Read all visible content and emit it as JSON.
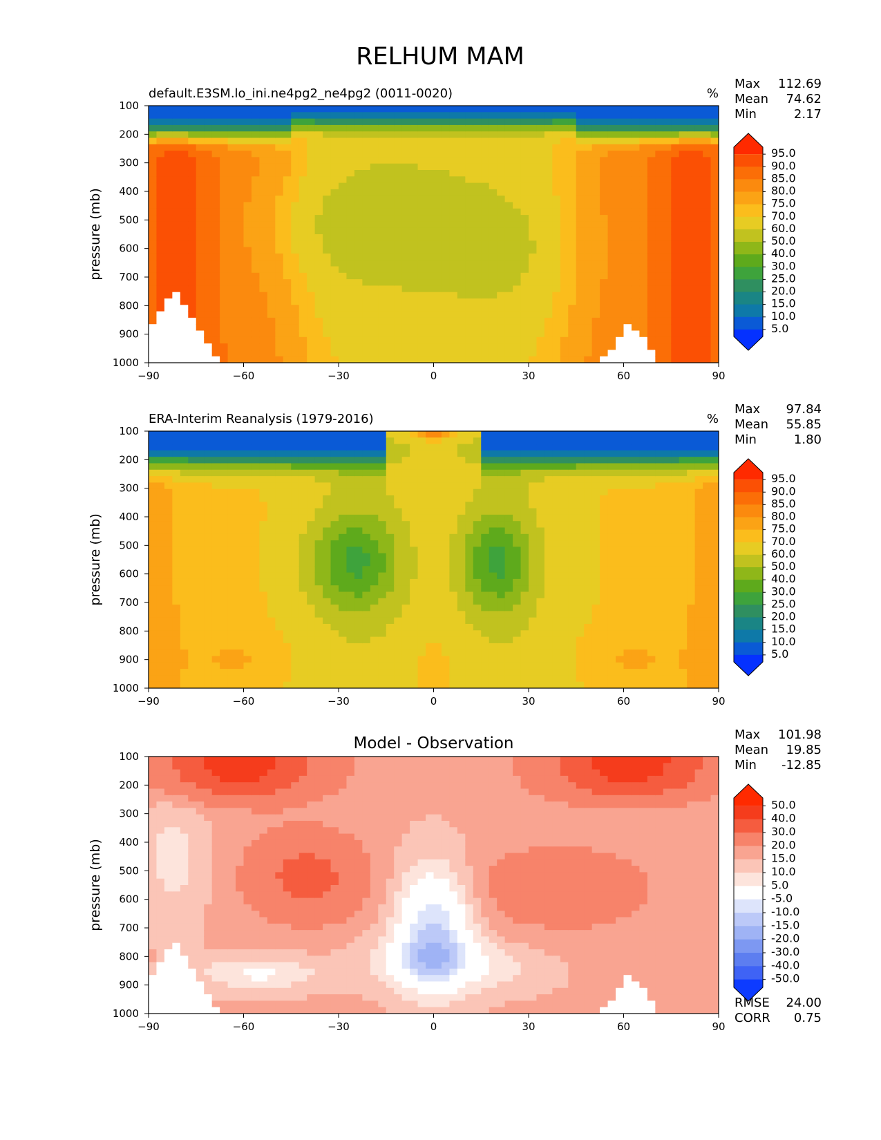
{
  "figure": {
    "title": "RELHUM MAM"
  },
  "ylabel": "pressure (mb)",
  "y_ticks": [
    "100",
    "200",
    "300",
    "400",
    "500",
    "600",
    "700",
    "800",
    "900",
    "1000"
  ],
  "x_ticks": [
    "−90",
    "−60",
    "−30",
    "0",
    "30",
    "60",
    "90"
  ],
  "chart_data": [
    {
      "type": "heatmap",
      "title": "default.E3SM.lo_ini.ne4pg2_ne4pg2 (0011-0020)",
      "units": "%",
      "stats": [
        {
          "label": "Max",
          "value": "112.69"
        },
        {
          "label": "Mean",
          "value": "74.62"
        },
        {
          "label": "Min",
          "value": "2.17"
        }
      ],
      "colorbar": {
        "levels": [
          "5.0",
          "10.0",
          "15.0",
          "20.0",
          "25.0",
          "30.0",
          "40.0",
          "50.0",
          "60.0",
          "70.0",
          "75.0",
          "80.0",
          "85.0",
          "90.0",
          "95.0"
        ],
        "colors": [
          "#0531ff",
          "#0a5ad6",
          "#0e79a8",
          "#1a8585",
          "#2f8f60",
          "#3ea33c",
          "#5eaa1c",
          "#8fb719",
          "#c1c21f",
          "#e7cc23",
          "#fbbd1c",
          "#fba315",
          "#fb8a0e",
          "#fb6e07",
          "#fb5004",
          "#ff2a00"
        ],
        "extend": "both"
      },
      "xlim": [
        -90,
        90
      ],
      "ylim": [
        1000,
        100
      ]
    },
    {
      "type": "heatmap",
      "title": "ERA-Interim Reanalysis (1979-2016)",
      "units": "%",
      "stats": [
        {
          "label": "Max",
          "value": "97.84"
        },
        {
          "label": "Mean",
          "value": "55.85"
        },
        {
          "label": "Min",
          "value": "1.80"
        }
      ],
      "colorbar": {
        "levels": [
          "5.0",
          "10.0",
          "15.0",
          "20.0",
          "25.0",
          "30.0",
          "40.0",
          "50.0",
          "60.0",
          "70.0",
          "75.0",
          "80.0",
          "85.0",
          "90.0",
          "95.0"
        ],
        "colors": [
          "#0531ff",
          "#0a5ad6",
          "#0e79a8",
          "#1a8585",
          "#2f8f60",
          "#3ea33c",
          "#5eaa1c",
          "#8fb719",
          "#c1c21f",
          "#e7cc23",
          "#fbbd1c",
          "#fba315",
          "#fb8a0e",
          "#fb6e07",
          "#fb5004",
          "#ff2a00"
        ],
        "extend": "both"
      },
      "xlim": [
        -90,
        90
      ],
      "ylim": [
        1000,
        100
      ]
    },
    {
      "type": "heatmap",
      "title": "Model - Observation",
      "units": "",
      "stats": [
        {
          "label": "Max",
          "value": "101.98"
        },
        {
          "label": "Mean",
          "value": "19.85"
        },
        {
          "label": "Min",
          "value": "-12.85"
        }
      ],
      "metrics": [
        {
          "label": "RMSE",
          "value": "24.00"
        },
        {
          "label": "CORR",
          "value": "0.75"
        }
      ],
      "colorbar": {
        "levels": [
          "-50.0",
          "-40.0",
          "-30.0",
          "-20.0",
          "-15.0",
          "-10.0",
          "-5.0",
          "5.0",
          "10.0",
          "15.0",
          "20.0",
          "30.0",
          "40.0",
          "50.0"
        ],
        "colors": [
          "#0d3bff",
          "#3f63f5",
          "#5d7ef0",
          "#7d98f2",
          "#9fb3f5",
          "#bcc9f8",
          "#dde4fb",
          "#ffffff",
          "#fde4dc",
          "#fbc5b7",
          "#f9a491",
          "#f7836a",
          "#f55c3f",
          "#f53c1c",
          "#ff2a00"
        ],
        "extend": "both"
      },
      "xlim": [
        -90,
        90
      ],
      "ylim": [
        1000,
        100
      ]
    }
  ]
}
